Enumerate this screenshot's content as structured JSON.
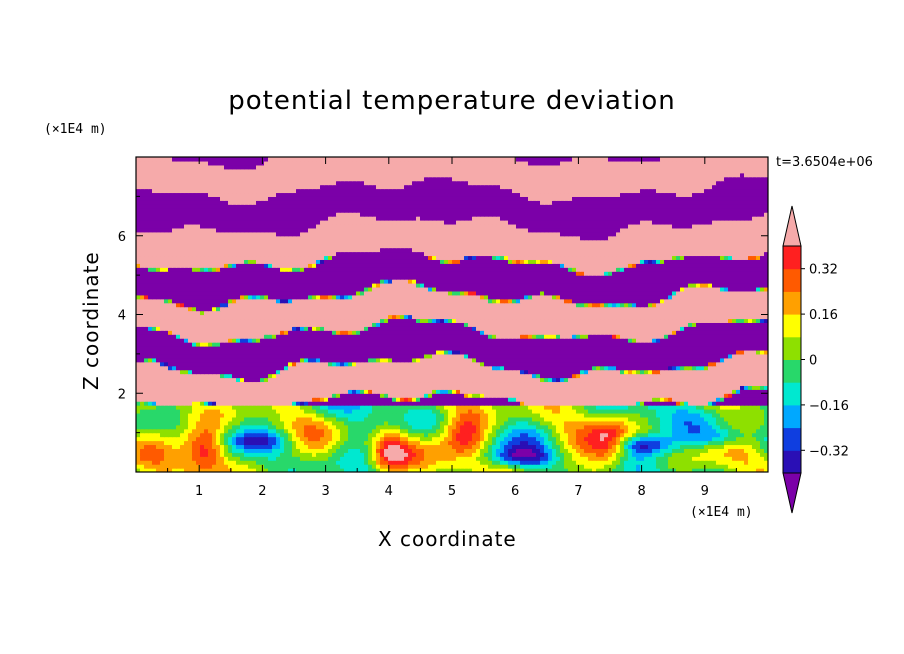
{
  "chart_data": {
    "type": "heatmap",
    "title": "potential temperature deviation",
    "xlabel": "X coordinate",
    "ylabel": "Z coordinate",
    "x_unit": "(×1E4 m)",
    "y_unit": "(×1E4 m)",
    "time_label": "t=3.6504e+06",
    "xlim": [
      0,
      10
    ],
    "ylim": [
      0,
      8
    ],
    "x_ticks": [
      "1",
      "2",
      "3",
      "4",
      "5",
      "6",
      "7",
      "8",
      "9"
    ],
    "y_ticks": [
      "2",
      "4",
      "6"
    ],
    "colorbar": {
      "levels": [
        -0.4,
        -0.32,
        -0.24,
        -0.16,
        -0.08,
        0,
        0.08,
        0.16,
        0.24,
        0.32,
        0.4
      ],
      "labels": [
        "0.32",
        "0.16",
        "0",
        "−0.16",
        "−0.32"
      ],
      "label_values": [
        0.32,
        0.16,
        0,
        -0.16,
        -0.32
      ],
      "colors": [
        "#7b00a8",
        "#2a0fb5",
        "#0f3ee0",
        "#00a8ff",
        "#00e8d0",
        "#28d86a",
        "#8ee000",
        "#ffff00",
        "#ffa000",
        "#ff5a00",
        "#ff2020",
        "#f6aaaa"
      ],
      "under_color": "#7b00a8",
      "over_color": "#f6aaaa"
    }
  }
}
